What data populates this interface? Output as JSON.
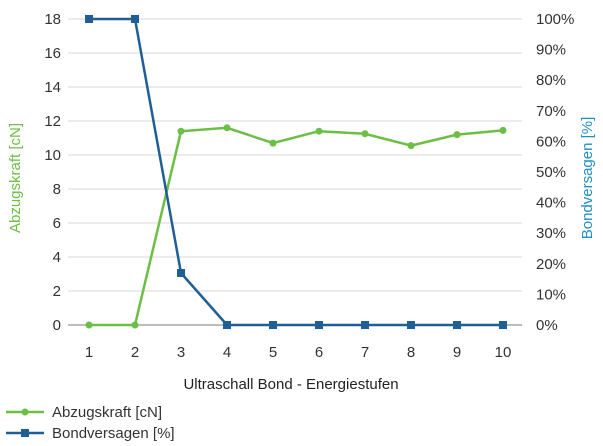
{
  "chart_data": {
    "type": "line",
    "x": [
      1,
      2,
      3,
      4,
      5,
      6,
      7,
      8,
      9,
      10
    ],
    "xlabel": "Ultraschall Bond - Energiestufen",
    "xlim": [
      1,
      10
    ],
    "series": [
      {
        "name": "Abzugskraft [cN]",
        "axis": "left",
        "color": "#6cbf45",
        "marker": "circle",
        "values": [
          0.0,
          0.0,
          11.4,
          11.6,
          10.7,
          11.4,
          11.25,
          10.55,
          11.2,
          11.45
        ]
      },
      {
        "name": "Bondversagen [%]",
        "axis": "right",
        "color": "#1f5f96",
        "marker": "square",
        "values": [
          100,
          100,
          17,
          0,
          0,
          0,
          0,
          0,
          0,
          0
        ]
      }
    ],
    "y_left": {
      "label": "Abzugskraft [cN]",
      "color": "#6cbf45",
      "ylim": [
        0,
        18
      ],
      "ticks": [
        "0",
        "2",
        "4",
        "6",
        "8",
        "10",
        "12",
        "14",
        "16",
        "18"
      ]
    },
    "y_right": {
      "label": "Bondversagen [%]",
      "color": "#1f8fc4",
      "ylim": [
        0,
        100
      ],
      "ticks": [
        "0%",
        "10%",
        "20%",
        "30%",
        "40%",
        "50%",
        "60%",
        "70%",
        "80%",
        "90%",
        "100%"
      ]
    },
    "grid": "horizontal",
    "legend": "bottom-left"
  }
}
